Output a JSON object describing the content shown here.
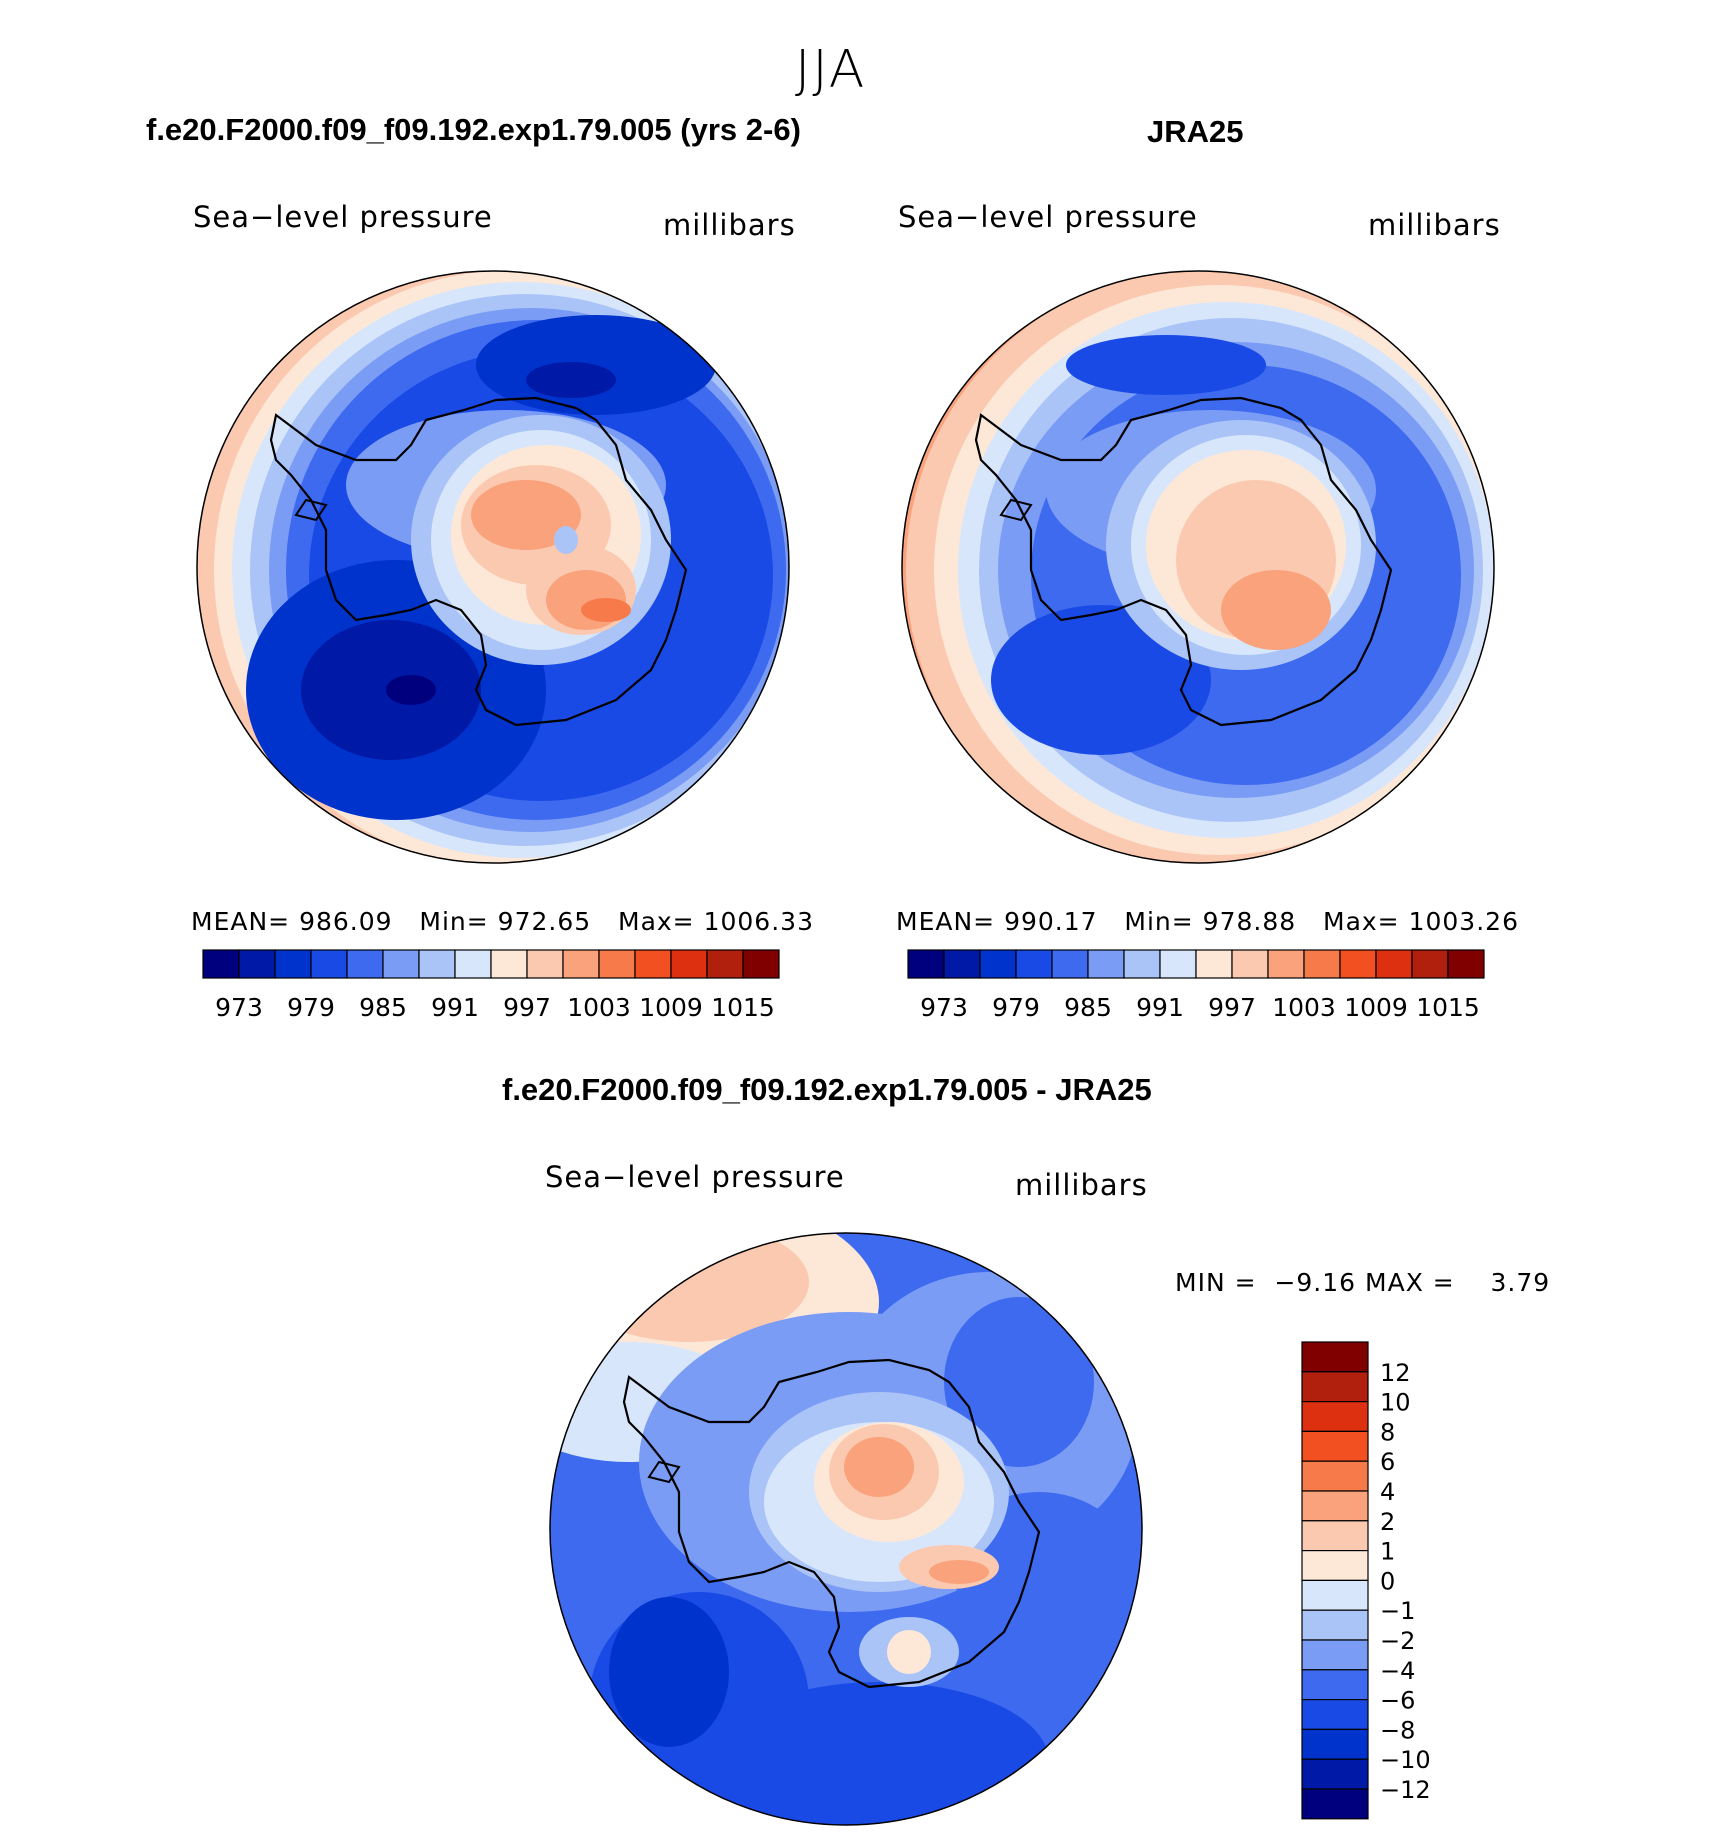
{
  "figure": {
    "suptitle": "JJA",
    "model_title": "f.e20.F2000.f09_f09.192.exp1.79.005 (yrs 2-6)",
    "obs_title": "JRA25",
    "diff_title": "f.e20.F2000.f09_f09.192.exp1.79.005 - JRA25"
  },
  "panels": {
    "model": {
      "variable": "Sea−level pressure",
      "units": "millibars",
      "mean_label": "MEAN=",
      "mean": "986.09",
      "min_label": "Min=",
      "min": "972.65",
      "max_label": "Max=",
      "max": "1006.33"
    },
    "obs": {
      "variable": "Sea−level pressure",
      "units": "millibars",
      "mean_label": "MEAN=",
      "mean": "990.17",
      "min_label": "Min=",
      "min": "978.88",
      "max_label": "Max=",
      "max": "1003.26"
    },
    "diff": {
      "variable": "Sea−level pressure",
      "units": "millibars",
      "min_label": "MIN =",
      "min": "−9.16",
      "max_label": "MAX =",
      "max": "3.79"
    }
  },
  "colorbars": {
    "abs": {
      "colors": [
        "#00007f",
        "#0019a6",
        "#0032cc",
        "#1a4ae6",
        "#3d6aef",
        "#7a9cf5",
        "#aac4f8",
        "#d8e6fb",
        "#fde8d8",
        "#fbc9b0",
        "#f9a27c",
        "#f77a4b",
        "#f25020",
        "#dc3010",
        "#b0200c",
        "#800000"
      ],
      "ticks": [
        "973",
        "979",
        "985",
        "991",
        "997",
        "1003",
        "1009",
        "1015"
      ]
    },
    "diff": {
      "colors_top_to_bottom": [
        "#800000",
        "#b0200c",
        "#dc3010",
        "#f25020",
        "#f77a4b",
        "#f9a27c",
        "#fbc9b0",
        "#fde8d8",
        "#d8e6fb",
        "#aac4f8",
        "#7a9cf5",
        "#3d6aef",
        "#1a4ae6",
        "#0032cc",
        "#0019a6",
        "#00007f"
      ],
      "ticks": [
        "12",
        "10",
        "8",
        "6",
        "4",
        "2",
        "1",
        "0",
        "−1",
        "−2",
        "−4",
        "−6",
        "−8",
        "−10",
        "−12"
      ]
    }
  },
  "map_colors": {
    "ocean_deep": "#0032cc",
    "ocean_mid": "#1a4ae6",
    "ocean_light": "#3d6aef",
    "pale_blue": "#aac4f8",
    "very_pale_blue": "#d8e6fb",
    "peach": "#fde8d8",
    "salmon": "#f9a27c",
    "orange": "#f77a4b"
  }
}
